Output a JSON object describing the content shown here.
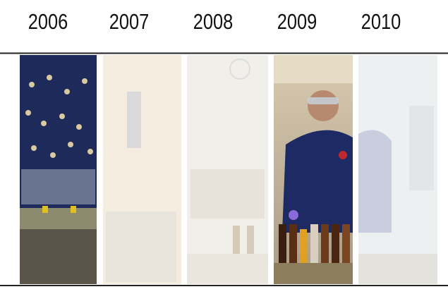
{
  "years": [
    "2006",
    "2007",
    "2008",
    "2009",
    "2010"
  ]
}
